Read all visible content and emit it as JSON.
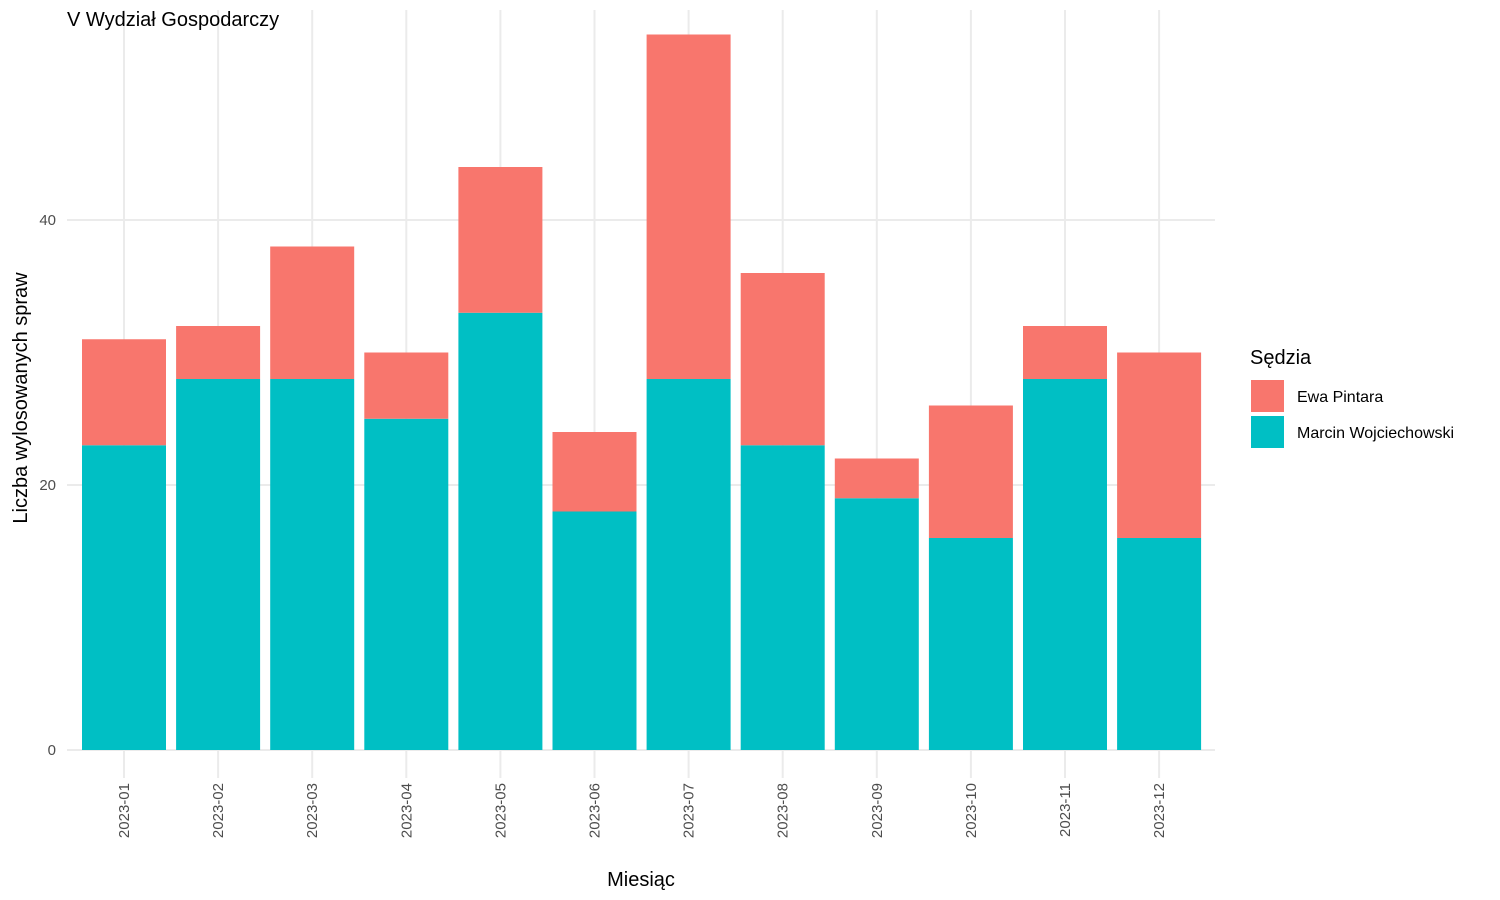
{
  "chart_data": {
    "type": "bar",
    "stacked": true,
    "title": "V Wydział Gospodarczy",
    "xlabel": "Miesiąc",
    "ylabel": "Liczba wylosowanych spraw",
    "categories": [
      "2023-01",
      "2023-02",
      "2023-03",
      "2023-04",
      "2023-05",
      "2023-06",
      "2023-07",
      "2023-08",
      "2023-09",
      "2023-10",
      "2023-11",
      "2023-12"
    ],
    "series": [
      {
        "name": "Marcin Wojciechowski",
        "color": "#00BFC4",
        "values": [
          23,
          28,
          28,
          25,
          33,
          18,
          28,
          23,
          19,
          16,
          28,
          16
        ]
      },
      {
        "name": "Ewa Pintara",
        "color": "#F8766D",
        "values": [
          8,
          4,
          10,
          5,
          11,
          6,
          26,
          13,
          3,
          10,
          4,
          14
        ]
      }
    ],
    "ylim": [
      0,
      55
    ],
    "yticks": [
      0,
      20,
      40
    ],
    "grid": true,
    "legend": {
      "title": "Sędzia",
      "position": "right",
      "entries": [
        "Ewa Pintara",
        "Marcin Wojciechowski"
      ]
    }
  }
}
